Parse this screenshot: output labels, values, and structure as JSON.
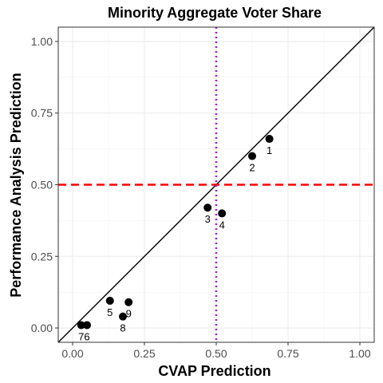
{
  "chart_data": {
    "type": "scatter",
    "title": "Minority Aggregate Voter Share",
    "xlabel": "CVAP Prediction",
    "ylabel": "Performance Analysis Prediction",
    "xlim": [
      -0.05,
      1.05
    ],
    "ylim": [
      -0.05,
      1.05
    ],
    "x_ticks": [
      0.0,
      0.25,
      0.5,
      0.75,
      1.0
    ],
    "y_ticks": [
      0.0,
      0.25,
      0.5,
      0.75,
      1.0
    ],
    "x_tick_labels": [
      "0.00",
      "0.25",
      "0.50",
      "0.75",
      "1.00"
    ],
    "y_tick_labels": [
      "0.00",
      "0.25",
      "0.50",
      "0.75",
      "1.00"
    ],
    "grid": true,
    "points": [
      {
        "label": "1",
        "x": 0.685,
        "y": 0.66
      },
      {
        "label": "2",
        "x": 0.625,
        "y": 0.6
      },
      {
        "label": "3",
        "x": 0.47,
        "y": 0.42
      },
      {
        "label": "4",
        "x": 0.52,
        "y": 0.4
      },
      {
        "label": "5",
        "x": 0.13,
        "y": 0.095
      },
      {
        "label": "6",
        "x": 0.05,
        "y": 0.01
      },
      {
        "label": "7",
        "x": 0.03,
        "y": 0.01
      },
      {
        "label": "8",
        "x": 0.175,
        "y": 0.04
      },
      {
        "label": "9",
        "x": 0.195,
        "y": 0.09
      }
    ],
    "reference_lines": [
      {
        "kind": "diagonal",
        "slope": 1,
        "intercept": 0,
        "color": "#000000",
        "style": "solid"
      },
      {
        "kind": "horizontal",
        "y": 0.5,
        "color": "#ff0000",
        "style": "dashed"
      },
      {
        "kind": "vertical",
        "x": 0.5,
        "color": "#a020f0",
        "style": "dotted"
      }
    ]
  }
}
